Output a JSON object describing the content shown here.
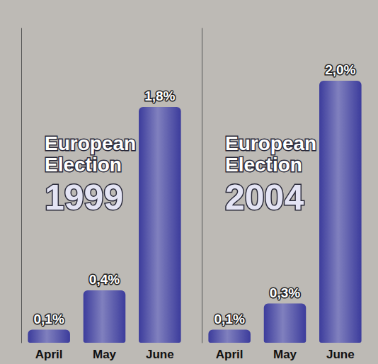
{
  "chart_data": [
    {
      "type": "bar",
      "title": "European Election",
      "subtitle": "1999",
      "categories": [
        "April",
        "May",
        "June"
      ],
      "values": [
        0.1,
        0.4,
        1.8
      ],
      "value_labels": [
        "0,1%",
        "0,4%",
        "1,8%"
      ],
      "color": "#3c3c9c",
      "ylim": [
        0,
        2.4
      ],
      "tick_labels": "x",
      "data_labels": true,
      "grid": false
    },
    {
      "type": "bar",
      "title": "European Election",
      "subtitle": "2004",
      "categories": [
        "April",
        "May",
        "June"
      ],
      "values": [
        0.1,
        0.3,
        2.0
      ],
      "value_labels": [
        "0,1%",
        "0,3%",
        "2,0%"
      ],
      "color": "#3c3c9c",
      "ylim": [
        0,
        2.4
      ],
      "tick_labels": "x",
      "data_labels": true,
      "grid": false
    }
  ]
}
